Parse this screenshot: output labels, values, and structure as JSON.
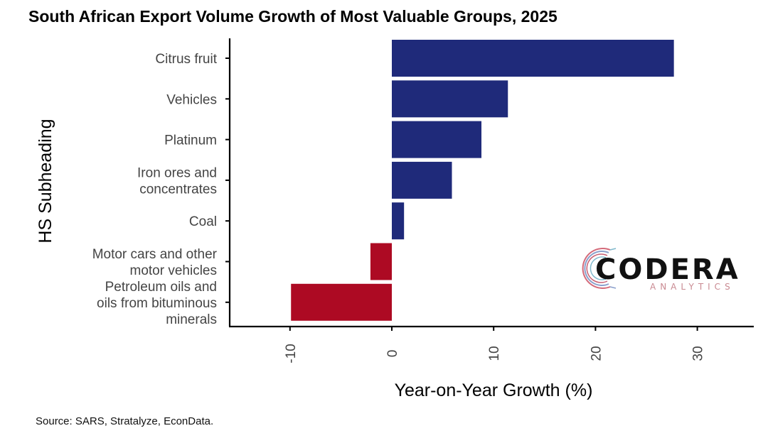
{
  "chart_data": {
    "type": "bar",
    "orientation": "horizontal",
    "title": "South African Export Volume Growth of Most Valuable Groups, 2025",
    "xlabel": "Year-on-Year Growth (%)",
    "ylabel": "HS Subheading",
    "xlim": [
      -15,
      35
    ],
    "xticks": [
      -10,
      0,
      10,
      20,
      30
    ],
    "xtick_labels": [
      "-10",
      "0",
      "10",
      "20",
      "30"
    ],
    "grid": false,
    "categories": [
      [
        "Citrus fruit"
      ],
      [
        "Vehicles"
      ],
      [
        "Platinum"
      ],
      [
        "Iron ores and",
        "concentrates"
      ],
      [
        "Coal"
      ],
      [
        "Motor cars and other",
        "motor vehicles"
      ],
      [
        "Petroleum oils and",
        "oils from bituminous",
        "minerals"
      ]
    ],
    "values": [
      27.7,
      11.4,
      8.8,
      5.9,
      1.2,
      -2.1,
      -9.9
    ],
    "colors": {
      "positive": "#1f2a7a",
      "negative": "#ad0a23"
    },
    "source": "Source: SARS, Stratalyze, EconData."
  },
  "logo": {
    "name": "CODERA",
    "sub": "ANALYTICS"
  }
}
